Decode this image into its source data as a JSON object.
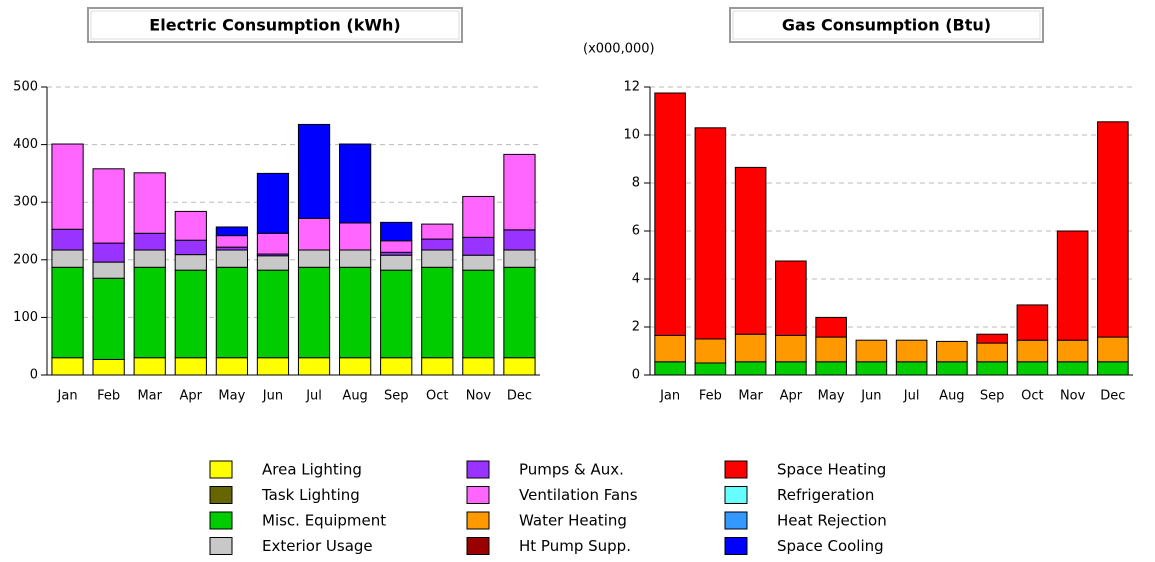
{
  "legend": [
    {
      "name": "Area Lighting",
      "color": "#ffff00"
    },
    {
      "name": "Task Lighting",
      "color": "#666600"
    },
    {
      "name": "Misc. Equipment",
      "color": "#00cc00"
    },
    {
      "name": "Exterior Usage",
      "color": "#c8c8c8"
    },
    {
      "name": "Pumps & Aux.",
      "color": "#9933ff"
    },
    {
      "name": "Ventilation Fans",
      "color": "#ff66ff"
    },
    {
      "name": "Water Heating",
      "color": "#ff9900"
    },
    {
      "name": "Ht Pump Supp.",
      "color": "#990000"
    },
    {
      "name": "Space Heating",
      "color": "#ff0000"
    },
    {
      "name": "Refrigeration",
      "color": "#66ffff"
    },
    {
      "name": "Heat Rejection",
      "color": "#3399ff"
    },
    {
      "name": "Space Cooling",
      "color": "#0000ff"
    }
  ],
  "chart_data": [
    {
      "type": "bar",
      "stacked": true,
      "title": "Electric Consumption (kWh)",
      "categories": [
        "Jan",
        "Feb",
        "Mar",
        "Apr",
        "May",
        "Jun",
        "Jul",
        "Aug",
        "Sep",
        "Oct",
        "Nov",
        "Dec"
      ],
      "ylim": [
        0,
        500
      ],
      "yticks": [
        0,
        100,
        200,
        300,
        400,
        500
      ],
      "grid": true,
      "series": [
        {
          "legend": 0,
          "values": [
            30,
            27,
            30,
            30,
            30,
            30,
            30,
            30,
            30,
            30,
            30,
            30
          ]
        },
        {
          "legend": 2,
          "values": [
            157,
            141,
            157,
            152,
            157,
            152,
            157,
            157,
            152,
            157,
            152,
            157
          ]
        },
        {
          "legend": 3,
          "values": [
            30,
            28,
            30,
            27,
            30,
            25,
            30,
            30,
            26,
            30,
            26,
            30
          ]
        },
        {
          "legend": 4,
          "values": [
            36,
            33,
            29,
            25,
            5,
            3,
            0,
            0,
            5,
            19,
            31,
            35
          ]
        },
        {
          "legend": 5,
          "values": [
            148,
            129,
            105,
            50,
            20,
            36,
            55,
            47,
            20,
            26,
            71,
            131
          ]
        },
        {
          "legend": 11,
          "values": [
            0,
            0,
            0,
            0,
            15,
            104,
            163,
            137,
            32,
            0,
            0,
            0
          ]
        }
      ]
    },
    {
      "type": "bar",
      "stacked": true,
      "title": "Gas Consumption (Btu)",
      "unit_label": "(x000,000)",
      "categories": [
        "Jan",
        "Feb",
        "Mar",
        "Apr",
        "May",
        "Jun",
        "Jul",
        "Aug",
        "Sep",
        "Oct",
        "Nov",
        "Dec"
      ],
      "ylim": [
        0,
        12
      ],
      "yticks": [
        0,
        2,
        4,
        6,
        8,
        10,
        12
      ],
      "grid": true,
      "series": [
        {
          "legend": 2,
          "values": [
            0.55,
            0.5,
            0.55,
            0.55,
            0.55,
            0.55,
            0.55,
            0.55,
            0.55,
            0.55,
            0.55,
            0.55
          ]
        },
        {
          "legend": 6,
          "values": [
            1.1,
            1.0,
            1.15,
            1.1,
            1.03,
            0.9,
            0.9,
            0.85,
            0.78,
            0.9,
            0.9,
            1.03
          ]
        },
        {
          "legend": 8,
          "values": [
            10.1,
            8.8,
            6.95,
            3.1,
            0.82,
            0,
            0,
            0,
            0.37,
            1.47,
            4.55,
            8.97
          ]
        }
      ]
    }
  ]
}
